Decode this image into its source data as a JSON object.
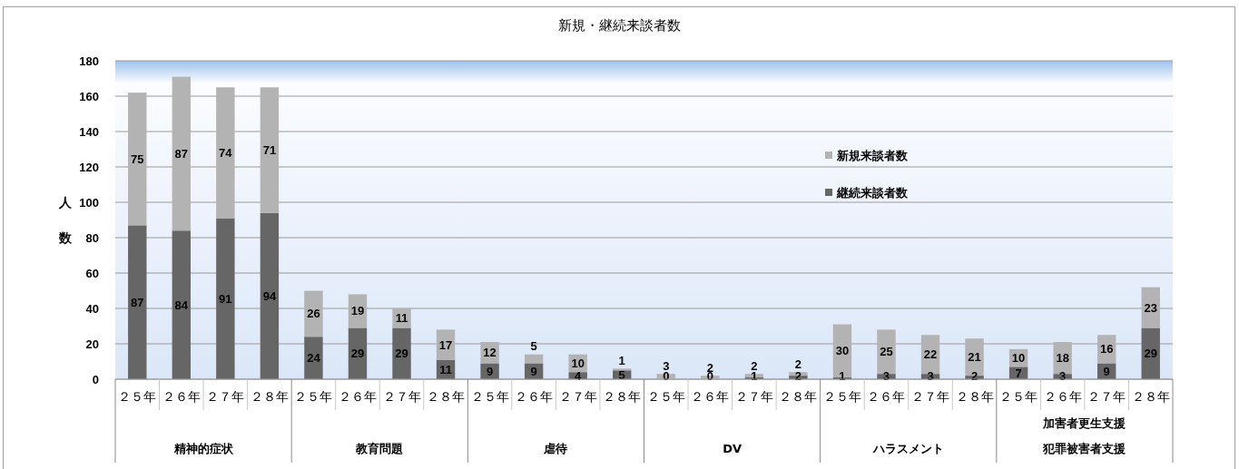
{
  "chart_data": {
    "type": "bar",
    "title": "新規・継続来談者数",
    "ylabel": "人数",
    "categories": [
      "２５年",
      "２６年",
      "２７年",
      "２８年",
      "２５年",
      "２６年",
      "２７年",
      "２８年",
      "２５年",
      "２６年",
      "２７年",
      "２８年",
      "２５年",
      "２６年",
      "２７年",
      "２８年",
      "２５年",
      "２６年",
      "２７年",
      "２８年",
      "２５年",
      "２６年",
      "２７年",
      "２８年"
    ],
    "series": [
      {
        "name": "継続来談者数",
        "color": "#666666",
        "values": [
          87,
          84,
          91,
          94,
          24,
          29,
          29,
          11,
          9,
          9,
          4,
          5,
          0,
          0,
          1,
          2,
          1,
          3,
          3,
          2,
          7,
          3,
          9,
          29
        ]
      },
      {
        "name": "新規来談者数",
        "color": "#b3b3b3",
        "values": [
          75,
          87,
          74,
          71,
          26,
          19,
          11,
          17,
          12,
          5,
          10,
          1,
          3,
          2,
          2,
          2,
          30,
          25,
          22,
          21,
          10,
          18,
          16,
          23
        ]
      }
    ],
    "stacked": true,
    "ylim": [
      0,
      180
    ],
    "yticks": [
      0,
      20,
      40,
      60,
      80,
      100,
      120,
      140,
      160,
      180
    ],
    "grid": "y",
    "legend": "right",
    "data_labels": true,
    "annotations": [
      "精神的症状",
      "教育問題",
      "虐待",
      "DV",
      "ハラスメント",
      "加害者更生支援犯罪被害者支援"
    ]
  }
}
